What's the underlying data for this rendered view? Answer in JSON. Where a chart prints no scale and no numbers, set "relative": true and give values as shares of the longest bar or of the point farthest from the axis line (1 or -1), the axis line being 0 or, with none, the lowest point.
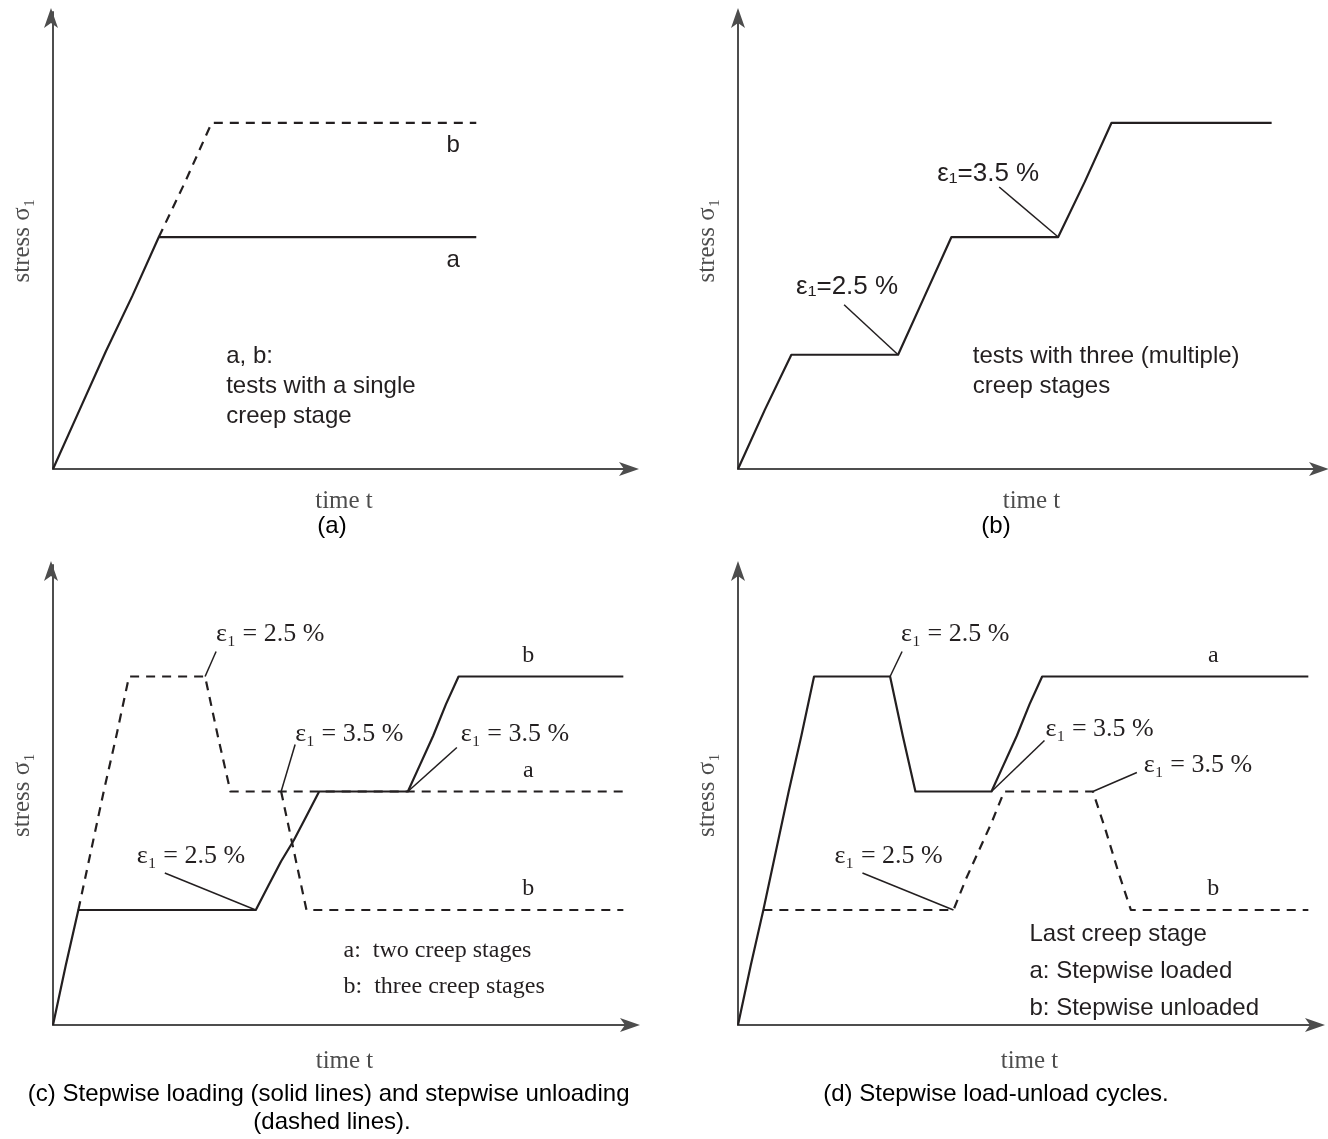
{
  "chart_data": [
    {
      "type": "line",
      "title": "(a)",
      "xlabel": "time t",
      "ylabel": "stress σ₁",
      "relative": true,
      "marker": "none",
      "categories": [
        null,
        null,
        null,
        null,
        null,
        null,
        null,
        null,
        null,
        null,
        null,
        null,
        null,
        null,
        null,
        null,
        null,
        null,
        null,
        null,
        null,
        null,
        null
      ],
      "series": [
        {
          "name": "a",
          "color": "#231f20",
          "line_style": "solid",
          "values": [
            0,
            0.17,
            0.34,
            0.5,
            0.67,
            0.67,
            0.67,
            0.67,
            0.67,
            0.67,
            0.67,
            0.67,
            0.67,
            0.67,
            0.67,
            0.67,
            0.67,
            null,
            null,
            null,
            null,
            null,
            null
          ]
        },
        {
          "name": "b",
          "color": "#231f20",
          "line_style": "dashed",
          "values": [
            null,
            null,
            null,
            null,
            0.67,
            0.83,
            1,
            1,
            1,
            1,
            1,
            1,
            1,
            1,
            1,
            1,
            1,
            null,
            null,
            null,
            null,
            null,
            null
          ]
        }
      ],
      "annotations": [
        "a, b:",
        "tests with a single",
        "creep stage"
      ]
    },
    {
      "type": "line",
      "title": "(b)",
      "xlabel": "time t",
      "ylabel": "stress σ₁",
      "relative": true,
      "marker": "none",
      "categories": [
        null,
        null,
        null,
        null,
        null,
        null,
        null,
        null,
        null,
        null,
        null,
        null,
        null,
        null,
        null,
        null,
        null,
        null,
        null,
        null,
        null,
        null,
        null
      ],
      "series": [
        {
          "color": "#231f20",
          "line_style": "solid",
          "values": [
            0,
            0.17,
            0.33,
            0.33,
            0.33,
            0.33,
            0.33,
            0.5,
            0.67,
            0.67,
            0.67,
            0.67,
            0.67,
            0.83,
            1,
            1,
            1,
            1,
            1,
            1,
            1,
            null,
            null
          ]
        }
      ],
      "annotations": [
        "ε₁=2.5 %",
        "ε₁=3.5 %",
        "tests with three (multiple)",
        "creep stages"
      ]
    },
    {
      "type": "line",
      "title": "(c) Stepwise loading (solid lines) and stepwise unloading (dashed lines).",
      "xlabel": "time t",
      "ylabel": "stress σ₁",
      "relative": true,
      "marker": "none",
      "categories": [
        null,
        null,
        null,
        null,
        null,
        null,
        null,
        null,
        null,
        null,
        null,
        null,
        null,
        null,
        null,
        null,
        null,
        null,
        null,
        null,
        null,
        null,
        null,
        null,
        null,
        null,
        null,
        null,
        null,
        null,
        null,
        null,
        null,
        null,
        null,
        null,
        null,
        null,
        null,
        null,
        null,
        null,
        null,
        null,
        null,
        null,
        null
      ],
      "series": [
        {
          "name": "b",
          "color": "#231f20",
          "line_style": "solid",
          "values": [
            0,
            0.17,
            0.33,
            0.33,
            0.33,
            0.33,
            0.33,
            0.33,
            0.33,
            0.33,
            0.33,
            0.33,
            0.33,
            0.33,
            0.33,
            0.33,
            0.33,
            0.4,
            0.47,
            0.53,
            0.6,
            0.67,
            0.67,
            0.67,
            0.67,
            0.67,
            0.67,
            0.67,
            0.67,
            0.75,
            0.83,
            0.92,
            1,
            1,
            1,
            1,
            1,
            1,
            1,
            1,
            1,
            1,
            1,
            1,
            1,
            1,
            null
          ]
        },
        {
          "name": "a",
          "color": "#231f20",
          "line_style": "dashed",
          "values": [
            null,
            null,
            0.33,
            0.5,
            0.67,
            0.83,
            1,
            1,
            1,
            1,
            1,
            1,
            1,
            0.83,
            0.67,
            0.67,
            0.67,
            0.67,
            0.67,
            0.67,
            0.67,
            0.67,
            0.67,
            0.67,
            0.67,
            0.67,
            0.67,
            0.67,
            0.67,
            0.67,
            0.67,
            0.67,
            0.67,
            0.67,
            0.67,
            0.67,
            0.67,
            0.67,
            0.67,
            0.67,
            0.67,
            0.67,
            0.67,
            0.67,
            0.67,
            0.67,
            null
          ]
        },
        {
          "name": "b",
          "color": "#231f20",
          "line_style": "dashed",
          "values": [
            null,
            null,
            null,
            null,
            null,
            null,
            null,
            null,
            null,
            null,
            null,
            null,
            null,
            null,
            null,
            null,
            null,
            null,
            0.67,
            0.5,
            0.33,
            0.33,
            0.33,
            0.33,
            0.33,
            0.33,
            0.33,
            0.33,
            0.33,
            0.33,
            0.33,
            0.33,
            0.33,
            0.33,
            0.33,
            0.33,
            0.33,
            0.33,
            0.33,
            0.33,
            0.33,
            0.33,
            0.33,
            0.33,
            0.33,
            0.33,
            null
          ]
        }
      ],
      "annotations": [
        "ε₁ = 2.5 %",
        "ε₁ = 3.5 %",
        "ε₁ = 3.5 %",
        "ε₁ = 2.5 %",
        "a:  two creep stages",
        "b:  three creep stages"
      ]
    },
    {
      "type": "line",
      "title": "(d) Stepwise load-unload cycles.",
      "xlabel": "time t",
      "ylabel": "stress σ₁",
      "relative": true,
      "marker": "none",
      "categories": [
        null,
        null,
        null,
        null,
        null,
        null,
        null,
        null,
        null,
        null,
        null,
        null,
        null,
        null,
        null,
        null,
        null,
        null,
        null,
        null,
        null,
        null,
        null,
        null,
        null,
        null,
        null,
        null,
        null,
        null,
        null,
        null,
        null,
        null,
        null,
        null,
        null,
        null,
        null,
        null,
        null,
        null,
        null,
        null,
        null,
        null,
        null
      ],
      "series": [
        {
          "name": "a",
          "color": "#231f20",
          "line_style": "solid",
          "values": [
            0,
            0.17,
            0.33,
            0.5,
            0.67,
            0.83,
            1,
            1,
            1,
            1,
            1,
            1,
            1,
            0.83,
            0.67,
            0.67,
            0.67,
            0.67,
            0.67,
            0.67,
            0.67,
            0.75,
            0.83,
            0.92,
            1,
            1,
            1,
            1,
            1,
            1,
            1,
            1,
            1,
            1,
            1,
            1,
            1,
            1,
            1,
            1,
            1,
            1,
            1,
            1,
            1,
            1,
            null
          ]
        },
        {
          "name": "b",
          "color": "#231f20",
          "line_style": "dashed",
          "values": [
            null,
            null,
            0.33,
            0.33,
            0.33,
            0.33,
            0.33,
            0.33,
            0.33,
            0.33,
            0.33,
            0.33,
            0.33,
            0.33,
            0.33,
            0.33,
            0.33,
            0.33,
            0.42,
            0.5,
            0.58,
            0.67,
            0.67,
            0.67,
            0.67,
            0.67,
            0.67,
            0.67,
            0.67,
            0.56,
            0.44,
            0.33,
            0.33,
            0.33,
            0.33,
            0.33,
            0.33,
            0.33,
            0.33,
            0.33,
            0.33,
            0.33,
            0.33,
            0.33,
            0.33,
            0.33,
            null
          ]
        }
      ],
      "annotations": [
        "ε₁ = 2.5 %",
        "ε₁ = 3.5 %",
        "ε₁ = 3.5 %",
        "ε₁ = 2.5 %",
        "Last creep stage",
        "a: Stepwise loaded",
        "b: Stepwise unloaded"
      ]
    }
  ]
}
